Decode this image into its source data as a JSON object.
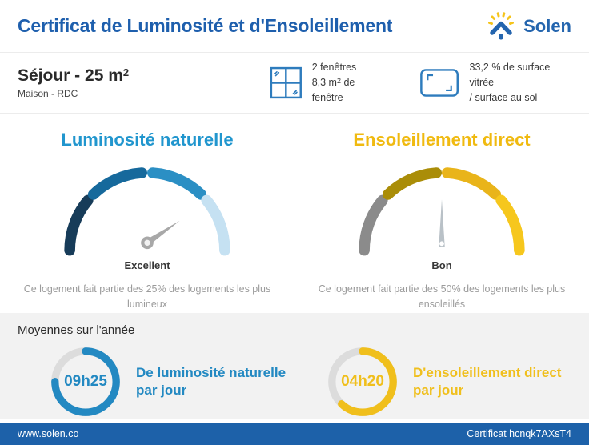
{
  "header": {
    "title": "Certificat de Luminosité et d'Ensoleillement",
    "title_color": "#1e5fad",
    "brand_name": "Solen",
    "brand_blue": "#2465ae",
    "brand_yellow": "#f5c41b"
  },
  "room": {
    "title_pre": "Séjour - 25 m",
    "title_sup": "2",
    "subtitle": "Maison - RDC"
  },
  "windows": {
    "line1": "2 fenêtres",
    "line2_pre": "8,3 m",
    "line2_sup": "2",
    "line2_post": " de fenêtre"
  },
  "glazing": {
    "line1": "33,2 % de surface vitrée",
    "line2": "/ surface au sol"
  },
  "gauges": [
    {
      "title": "Luminosité naturelle",
      "title_color": "#2196ce",
      "rating": "Excellent",
      "description": "Ce logement fait partie des 25% des logements les plus lumineux",
      "segment_colors": [
        "#173c59",
        "#16699c",
        "#2b8fc4",
        "#c5e1f2"
      ],
      "needle_angle_deg": 34
    },
    {
      "title": "Ensoleillement direct",
      "title_color": "#f0ba10",
      "rating": "Bon",
      "description": "Ce logement fait partie des 50% des logements les plus ensoleillés",
      "segment_colors": [
        "#8b8b8b",
        "#aa8d08",
        "#e9b41a",
        "#f6c71d"
      ],
      "needle_angle_deg": 90
    }
  ],
  "averages": {
    "heading": "Moyennes sur l'année",
    "items": [
      {
        "value": "09h25",
        "label": "De luminosité naturelle par jour",
        "color": "#2389c2",
        "fill_pct": 75
      },
      {
        "value": "04h20",
        "label": "D'ensoleillement direct par jour",
        "color": "#f0bf1c",
        "fill_pct": 62
      }
    ]
  },
  "footer": {
    "site": "www.solen.co",
    "certificate": "Certificat hcnqk7AXsT4"
  }
}
